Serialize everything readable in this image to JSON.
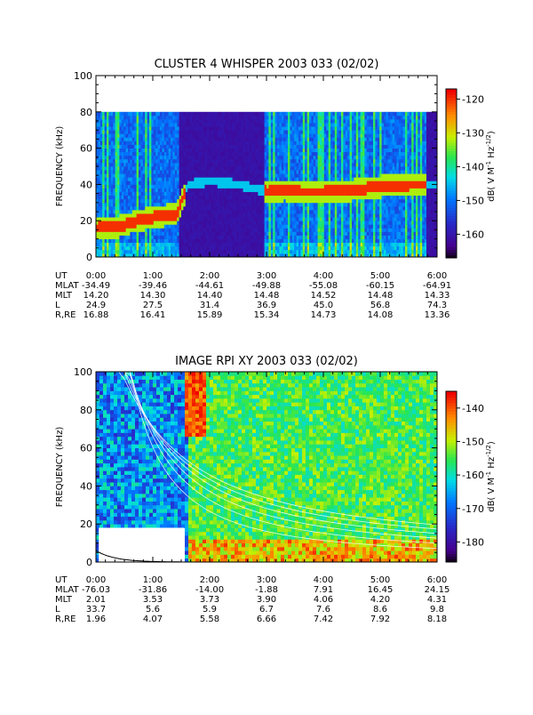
{
  "chart_data": [
    {
      "type": "heatmap",
      "title": "CLUSTER 4 WHISPER 2003 033 (02/02)",
      "ylabel": "FREQUENCY (kHz)",
      "ylim": [
        0,
        100
      ],
      "yticks": [
        "0",
        "20",
        "40",
        "60",
        "80",
        "100"
      ],
      "xticks": [
        "0:00",
        "1:00",
        "2:00",
        "3:00",
        "4:00",
        "5:00",
        "6:00"
      ],
      "colorbar": {
        "label": "dB( V M⁻¹ Hz⁻¹ᐟ²)",
        "label_parts": [
          "dB( V M",
          "-1",
          " Hz",
          "-1/2",
          ")"
        ],
        "range": [
          -167,
          -117
        ],
        "ticks": [
          "-120",
          "-130",
          "-140",
          "-150",
          "-160"
        ]
      },
      "features": {
        "band_upper_khz": 80,
        "emission_line": [
          [
            0.0,
            16
          ],
          [
            0.4,
            17
          ],
          [
            0.7,
            20
          ],
          [
            1.0,
            22
          ],
          [
            1.4,
            24
          ],
          [
            1.6,
            40
          ],
          [
            2.0,
            42
          ],
          [
            2.5,
            40
          ],
          [
            3.0,
            36
          ],
          [
            3.3,
            37
          ],
          [
            3.6,
            36
          ],
          [
            4.0,
            36
          ],
          [
            4.5,
            37
          ],
          [
            5.0,
            39
          ],
          [
            5.5,
            40
          ],
          [
            6.0,
            40
          ]
        ]
      },
      "ephemeris": {
        "labels": [
          "UT",
          "MLAT",
          "MLT",
          "L",
          "R,RE"
        ],
        "columns": [
          [
            "0:00",
            "-34.49",
            "14.20",
            "24.9",
            "16.88"
          ],
          [
            "1:00",
            "-39.46",
            "14.30",
            "27.5",
            "16.41"
          ],
          [
            "2:00",
            "-44.61",
            "14.40",
            "31.4",
            "15.89"
          ],
          [
            "3:00",
            "-49.88",
            "14.48",
            "36.9",
            "15.34"
          ],
          [
            "4:00",
            "-55.08",
            "14.52",
            "45.0",
            "14.73"
          ],
          [
            "5:00",
            "-60.15",
            "14.48",
            "56.8",
            "14.08"
          ],
          [
            "6:00",
            "-64.91",
            "14.33",
            "74.3",
            "13.36"
          ]
        ]
      }
    },
    {
      "type": "heatmap",
      "title": "IMAGE RPI XY 2003 033 (02/02)",
      "ylabel": "FREQUENCY (kHz)",
      "ylim": [
        0,
        100
      ],
      "yticks": [
        "0",
        "20",
        "40",
        "60",
        "80",
        "100"
      ],
      "xticks": [
        "0:00",
        "1:00",
        "2:00",
        "3:00",
        "4:00",
        "5:00",
        "6:00"
      ],
      "colorbar": {
        "label": "dB( V M⁻¹ Hz⁻¹ᐟ²)",
        "label_parts": [
          "dB( V M",
          "-1",
          " Hz",
          "-1/2",
          ")"
        ],
        "range": [
          -186,
          -135
        ],
        "ticks": [
          "-140",
          "-150",
          "-160",
          "-170",
          "-180"
        ]
      },
      "features": {
        "data_gap": {
          "x": [
            0.05,
            1.55
          ],
          "y": [
            0,
            18
          ]
        }
      },
      "ephemeris": {
        "labels": [
          "UT",
          "MLAT",
          "MLT",
          "L",
          "R,RE"
        ],
        "columns": [
          [
            "0:00",
            "-76.03",
            "2.01",
            "33.7",
            "1.96"
          ],
          [
            "1:00",
            "-31.86",
            "3.53",
            "5.6",
            "4.07"
          ],
          [
            "2:00",
            "-14.00",
            "3.73",
            "5.9",
            "5.58"
          ],
          [
            "3:00",
            "-1.88",
            "3.90",
            "6.7",
            "6.66"
          ],
          [
            "4:00",
            "7.91",
            "4.06",
            "7.6",
            "7.42"
          ],
          [
            "5:00",
            "16.45",
            "4.20",
            "8.6",
            "7.92"
          ],
          [
            "6:00",
            "24.15",
            "4.31",
            "9.8",
            "8.18"
          ]
        ]
      }
    }
  ]
}
